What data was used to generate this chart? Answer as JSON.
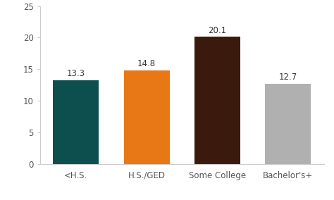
{
  "categories": [
    "<H.S.",
    "H.S./GED",
    "Some College",
    "Bachelor's+"
  ],
  "values": [
    13.3,
    14.8,
    20.1,
    12.7
  ],
  "bar_colors": [
    "#0d4f4f",
    "#e87716",
    "#3b1a0e",
    "#b0b0b0"
  ],
  "bar_labels": [
    "13.3",
    "14.8",
    "20.1",
    "12.7"
  ],
  "ylim": [
    0,
    25
  ],
  "yticks": [
    0,
    5,
    10,
    15,
    20,
    25
  ],
  "label_fontsize": 8.5,
  "tick_fontsize": 8.5,
  "background_color": "#ffffff",
  "bar_width": 0.65,
  "spine_color": "#cccccc",
  "tick_color": "#555555"
}
